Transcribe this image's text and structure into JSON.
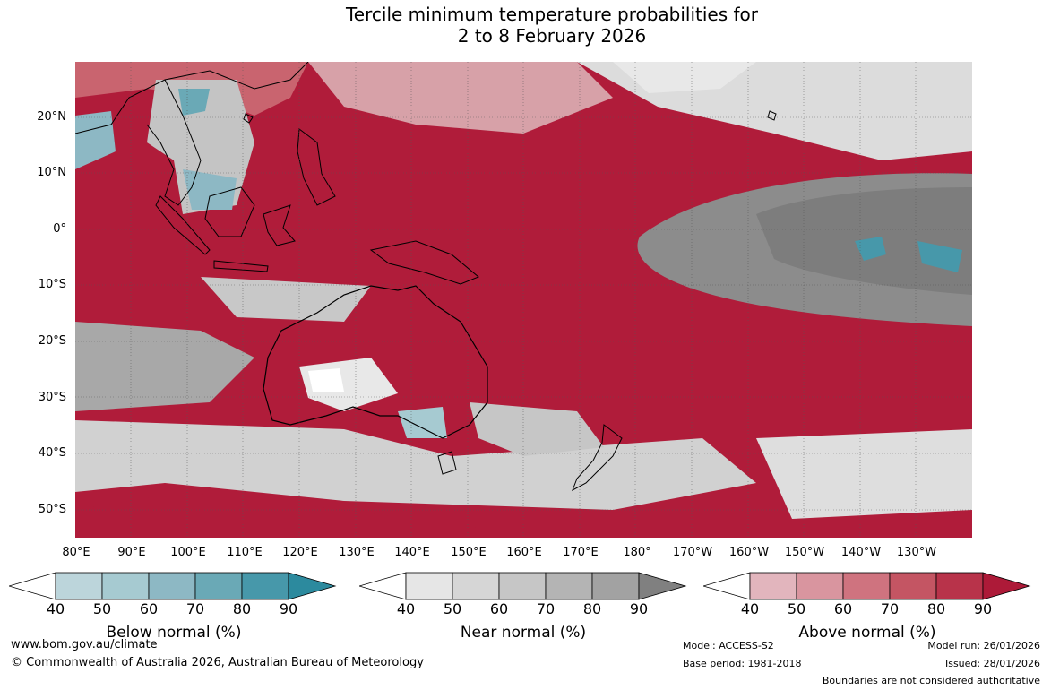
{
  "title_line1": "Tercile minimum temperature probabilities for",
  "title_line2": "2 to 8 February 2026",
  "lat_labels": [
    "20°N",
    "10°N",
    "0°",
    "10°S",
    "20°S",
    "30°S",
    "40°S",
    "50°S"
  ],
  "lon_labels": [
    "80°E",
    "90°E",
    "100°E",
    "110°E",
    "120°E",
    "130°E",
    "140°E",
    "150°E",
    "160°E",
    "170°E",
    "180°",
    "170°W",
    "160°W",
    "150°W",
    "140°W",
    "130°W"
  ],
  "colorbars": [
    {
      "label": "Below normal (%)",
      "ticks": [
        "40",
        "50",
        "60",
        "70",
        "80",
        "90"
      ],
      "colors": [
        "#ffffff",
        "#bcd5db",
        "#a6cad1",
        "#8db8c4",
        "#6aa9b6",
        "#4798aa",
        "#2c8a9e"
      ]
    },
    {
      "label": "Near normal (%)",
      "ticks": [
        "40",
        "50",
        "60",
        "70",
        "80",
        "90"
      ],
      "colors": [
        "#ffffff",
        "#e6e6e6",
        "#d6d6d6",
        "#c6c6c6",
        "#b4b4b4",
        "#a2a2a2",
        "#808080"
      ]
    },
    {
      "label": "Above normal (%)",
      "ticks": [
        "40",
        "50",
        "60",
        "70",
        "80",
        "90"
      ],
      "colors": [
        "#ffffff",
        "#e2b5bd",
        "#d9959f",
        "#cf737f",
        "#c45563",
        "#b8334a",
        "#ad1a38"
      ]
    }
  ],
  "footer": {
    "website": "www.bom.gov.au/climate",
    "copyright": "© Commonwealth of Australia 2026, Australian Bureau of Meteorology",
    "model": "Model: ACCESS-S2",
    "base_period": "Base period: 1981-2018",
    "model_run": "Model run: 26/01/2026",
    "issued": "Issued: 28/01/2026",
    "disclaimer": "Boundaries are not considered authoritative"
  }
}
